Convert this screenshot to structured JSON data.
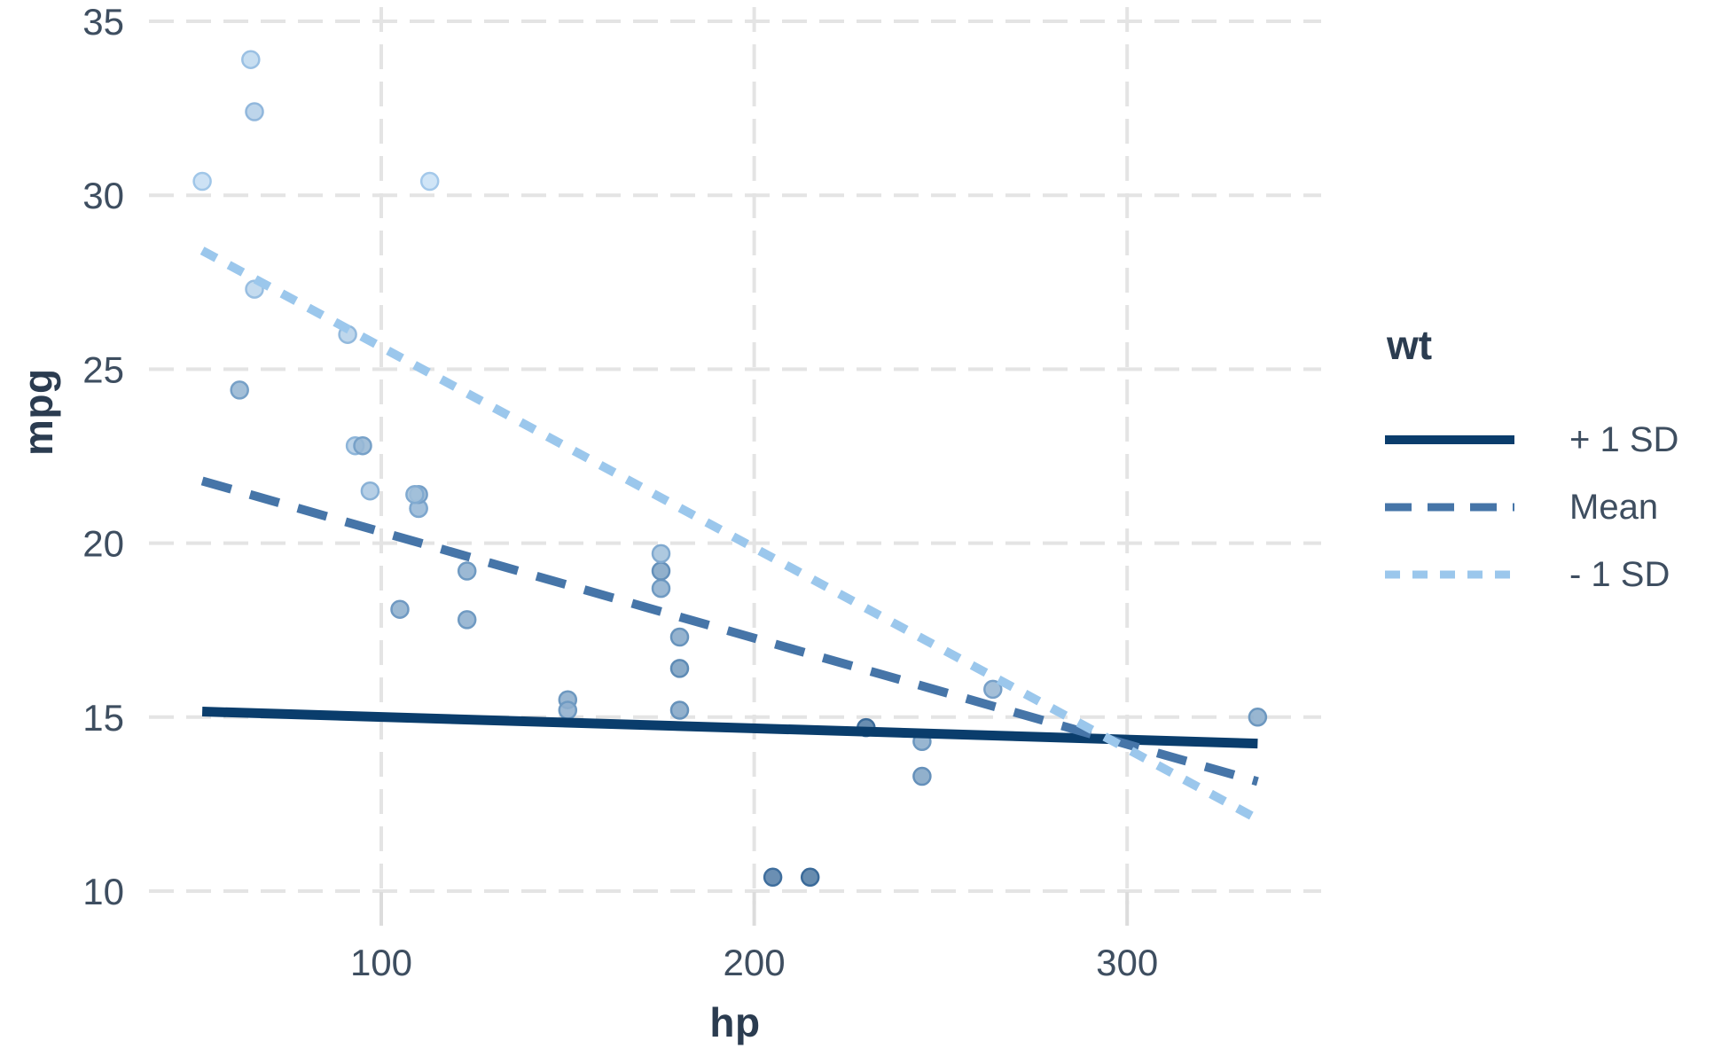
{
  "chart_data": {
    "type": "scatter",
    "title": "",
    "xlabel": "hp",
    "ylabel": "mpg",
    "legend_title": "wt",
    "legend_position": "right",
    "grid": "dashed-light-gray-on-white",
    "x_ticks": [
      100,
      200,
      300
    ],
    "y_ticks": [
      10,
      15,
      20,
      25,
      30,
      35
    ],
    "x_axis_range_shown": [
      38,
      352
    ],
    "y_axis_range_shown": [
      9.3,
      35.4
    ],
    "color_encoding": {
      "variable": "wt",
      "low_fill": "#c9e1f6",
      "high_fill": "#527ca4",
      "low_stroke": "#a3c8ea",
      "high_stroke": "#3a6a99",
      "wt_min": 1.513,
      "wt_max": 5.424
    },
    "series": [
      {
        "name": "+ 1 SD",
        "style": "solid",
        "color": "#0a3d6c",
        "x": [
          52,
          335
        ],
        "y": [
          15.16,
          14.24
        ]
      },
      {
        "name": "Mean",
        "style": "dashed",
        "color": "#4675a8",
        "x": [
          52,
          335
        ],
        "y": [
          21.79,
          13.15
        ]
      },
      {
        "name": "- 1 SD",
        "style": "dotted",
        "color": "#9bc7ec",
        "x": [
          52,
          335
        ],
        "y": [
          28.41,
          12.07
        ]
      }
    ],
    "points": [
      {
        "hp": 110,
        "mpg": 21.0,
        "wt": 2.62
      },
      {
        "hp": 110,
        "mpg": 21.0,
        "wt": 2.875
      },
      {
        "hp": 93,
        "mpg": 22.8,
        "wt": 2.32
      },
      {
        "hp": 110,
        "mpg": 21.4,
        "wt": 3.215
      },
      {
        "hp": 175,
        "mpg": 18.7,
        "wt": 3.44
      },
      {
        "hp": 105,
        "mpg": 18.1,
        "wt": 3.46
      },
      {
        "hp": 245,
        "mpg": 14.3,
        "wt": 3.57
      },
      {
        "hp": 62,
        "mpg": 24.4,
        "wt": 3.19
      },
      {
        "hp": 95,
        "mpg": 22.8,
        "wt": 3.15
      },
      {
        "hp": 123,
        "mpg": 19.2,
        "wt": 3.44
      },
      {
        "hp": 123,
        "mpg": 17.8,
        "wt": 3.44
      },
      {
        "hp": 180,
        "mpg": 16.4,
        "wt": 4.07
      },
      {
        "hp": 180,
        "mpg": 17.3,
        "wt": 3.73
      },
      {
        "hp": 180,
        "mpg": 15.2,
        "wt": 3.78
      },
      {
        "hp": 205,
        "mpg": 10.4,
        "wt": 5.25
      },
      {
        "hp": 215,
        "mpg": 10.4,
        "wt": 5.424
      },
      {
        "hp": 230,
        "mpg": 14.7,
        "wt": 5.345
      },
      {
        "hp": 66,
        "mpg": 32.4,
        "wt": 2.2
      },
      {
        "hp": 52,
        "mpg": 30.4,
        "wt": 1.615
      },
      {
        "hp": 65,
        "mpg": 33.9,
        "wt": 1.835
      },
      {
        "hp": 97,
        "mpg": 21.5,
        "wt": 2.465
      },
      {
        "hp": 150,
        "mpg": 15.5,
        "wt": 3.52
      },
      {
        "hp": 150,
        "mpg": 15.2,
        "wt": 3.435
      },
      {
        "hp": 245,
        "mpg": 13.3,
        "wt": 3.84
      },
      {
        "hp": 175,
        "mpg": 19.2,
        "wt": 3.845
      },
      {
        "hp": 66,
        "mpg": 27.3,
        "wt": 1.935
      },
      {
        "hp": 91,
        "mpg": 26.0,
        "wt": 2.14
      },
      {
        "hp": 113,
        "mpg": 30.4,
        "wt": 1.513
      },
      {
        "hp": 264,
        "mpg": 15.8,
        "wt": 3.17
      },
      {
        "hp": 175,
        "mpg": 19.7,
        "wt": 2.77
      },
      {
        "hp": 335,
        "mpg": 15.0,
        "wt": 3.57
      },
      {
        "hp": 109,
        "mpg": 21.4,
        "wt": 2.78
      }
    ],
    "style_tokens": {
      "gridline_color": "#e4e4e4",
      "tick_mark_color": "#dcdcdc",
      "tick_label_color": "#3e4e60",
      "axis_title_color": "#2b3c50",
      "background": "#ffffff"
    }
  }
}
